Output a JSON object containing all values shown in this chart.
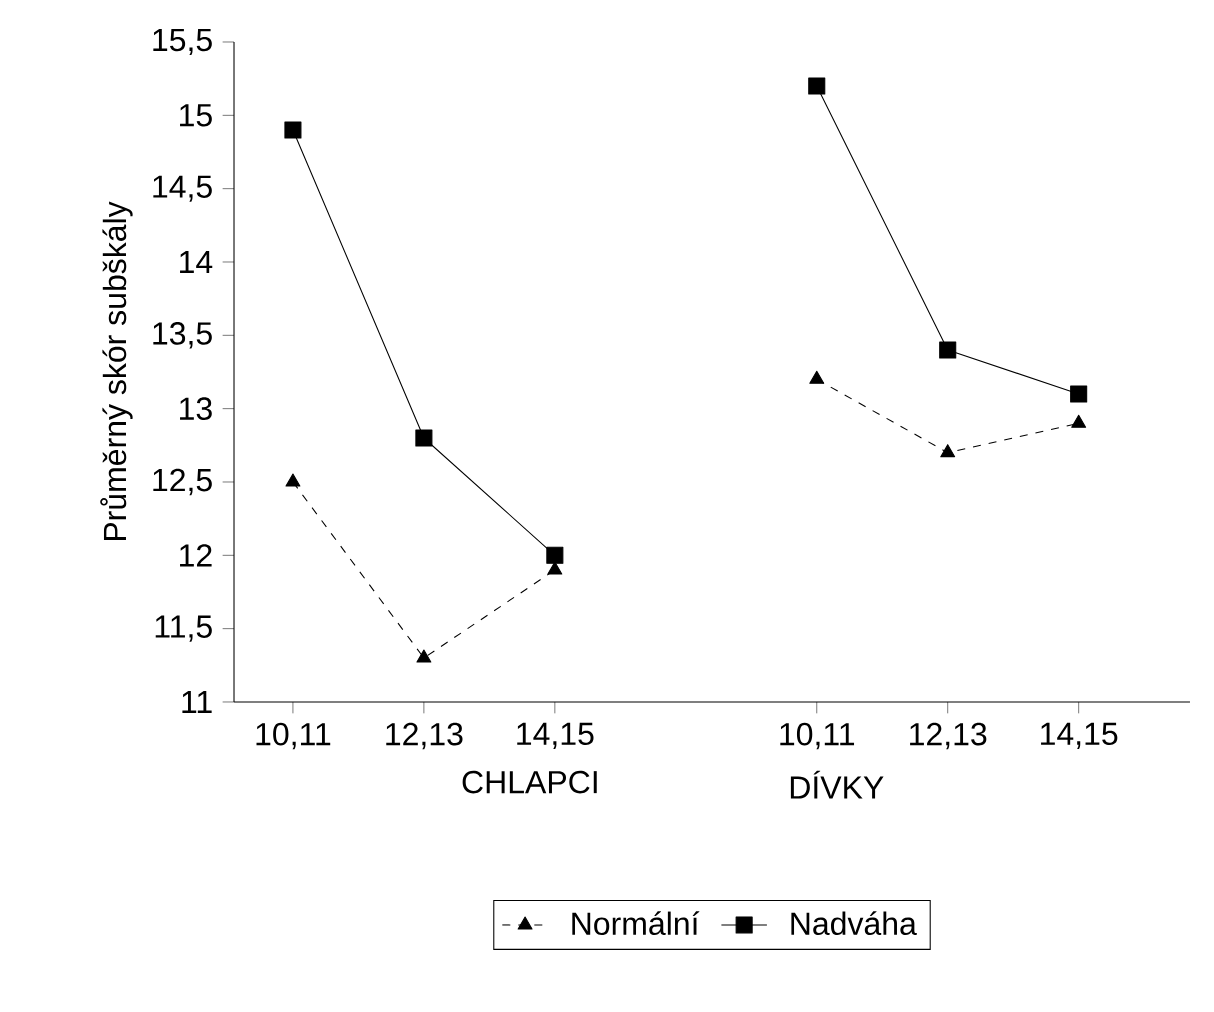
{
  "chart_data": {
    "type": "line",
    "ylabel": "Průměrný skór subškály",
    "categories": [
      "10,11",
      "12,13",
      "14,15",
      null,
      "10,11",
      "12,13",
      "14,15"
    ],
    "series": [
      {
        "name": "Normální",
        "color": "#000000",
        "marker": "triangle",
        "line_style": "dashed",
        "values": [
          12.5,
          11.3,
          11.9,
          null,
          13.2,
          12.7,
          12.9
        ]
      },
      {
        "name": "Nadváha",
        "color": "#000000",
        "marker": "square",
        "line_style": "solid",
        "values": [
          14.9,
          12.8,
          12.0,
          null,
          15.2,
          13.4,
          13.1
        ]
      }
    ],
    "ylim": [
      11,
      15.5
    ],
    "yticks": [
      11,
      {
        "value": 11.5,
        "label": "11,5"
      },
      12,
      {
        "value": 12.5,
        "label": "12,5"
      },
      13,
      {
        "value": 13.5,
        "label": "13,5"
      },
      14,
      {
        "value": 14.5,
        "label": "14,5"
      },
      15,
      {
        "value": 15.5,
        "label": "15,5"
      }
    ],
    "annotations": [
      "CHLAPCI",
      "DÍVKY"
    ],
    "grid": false,
    "legend": "bottom"
  }
}
